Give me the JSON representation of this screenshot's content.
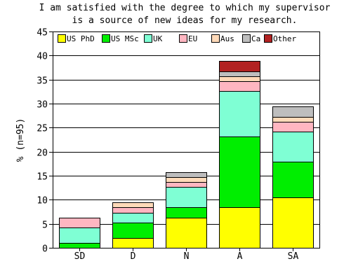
{
  "chart_data": {
    "type": "bar",
    "stacked": true,
    "title_lines": [
      "I am satisfied with the degree to which my supervisor",
      "is a source of new ideas for my research."
    ],
    "xlabel": "",
    "ylabel": "% (n=95)",
    "ylim": [
      0,
      45
    ],
    "yticks": [
      0,
      5,
      10,
      15,
      20,
      25,
      30,
      35,
      40,
      45
    ],
    "grid": true,
    "legend_position": "top",
    "categories": [
      "SD",
      "D",
      "N",
      "A",
      "SA"
    ],
    "series": [
      {
        "name": "US PhD",
        "color": "#ffff00",
        "values": [
          0,
          2.1,
          6.3,
          8.4,
          10.5
        ]
      },
      {
        "name": "US MSc",
        "color": "#00ee00",
        "values": [
          1.05,
          3.15,
          2.1,
          14.7,
          7.35
        ]
      },
      {
        "name": "UK",
        "color": "#7fffd4",
        "values": [
          3.15,
          2.1,
          4.2,
          9.45,
          6.3
        ]
      },
      {
        "name": "EU",
        "color": "#ffb6c1",
        "values": [
          2.1,
          1.05,
          1.05,
          2.1,
          2.1
        ]
      },
      {
        "name": "Aus",
        "color": "#ffdab9",
        "values": [
          0,
          1.05,
          1.05,
          1.05,
          1.05
        ]
      },
      {
        "name": "Ca",
        "color": "#bebebe",
        "values": [
          0,
          0,
          1.05,
          1.05,
          2.1
        ]
      },
      {
        "name": "Other",
        "color": "#b22222",
        "values": [
          0,
          0,
          0,
          2.1,
          0
        ]
      }
    ]
  }
}
